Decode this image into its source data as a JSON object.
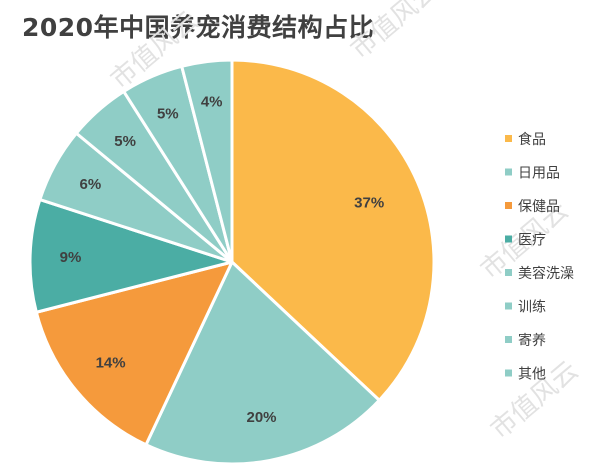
{
  "chart_data": {
    "type": "pie",
    "title": "2020年中国养宠消费结构占比",
    "slices": [
      {
        "label": "食品",
        "value": 37,
        "display": "37%",
        "color": "#FBB94A"
      },
      {
        "label": "日用品",
        "value": 20,
        "display": "20%",
        "color": "#8FCDC6"
      },
      {
        "label": "保健品",
        "value": 14,
        "display": "14%",
        "color": "#F59A3C"
      },
      {
        "label": "医疗",
        "value": 9,
        "display": "9%",
        "color": "#4BADA4"
      },
      {
        "label": "美容洗澡",
        "value": 6,
        "display": "6%",
        "color": "#8FCDC6"
      },
      {
        "label": "训练",
        "value": 5,
        "display": "5%",
        "color": "#8FCDC6"
      },
      {
        "label": "寄养",
        "value": 5,
        "display": "5%",
        "color": "#8FCDC6"
      },
      {
        "label": "其他",
        "value": 4,
        "display": "4%",
        "color": "#8FCDC6"
      }
    ],
    "legend_position": "right"
  },
  "watermark": "市值风云"
}
